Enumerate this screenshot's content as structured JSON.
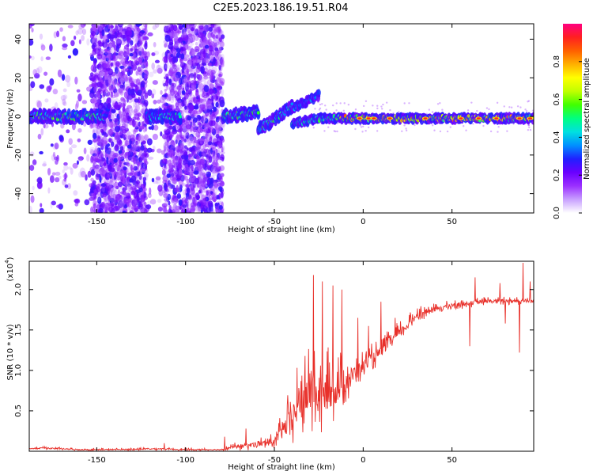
{
  "title": "C2E5.2023.186.19.51.R04",
  "colorbar": {
    "label": "Normalized spectral amplitude",
    "ticks": [
      0.0,
      0.2,
      0.4,
      0.6,
      0.8
    ],
    "tick_labels": [
      "0.0",
      "0.2",
      "0.4",
      "0.6",
      "0.8"
    ],
    "colors": [
      "#ffffff",
      "#c8a0ff",
      "#9b30ff",
      "#6a00ff",
      "#2020ff",
      "#0090ff",
      "#00e0e0",
      "#00ff80",
      "#40ff00",
      "#c0ff00",
      "#ffff00",
      "#ffb000",
      "#ff6000",
      "#ff2020",
      "#ff0080"
    ]
  },
  "chart_data": [
    {
      "type": "heatmap",
      "description_id": "spectrogram",
      "xlabel": "Height of straight line (km)",
      "ylabel": "Frequency (Hz)",
      "xlim": [
        -188,
        96
      ],
      "ylim": [
        -50,
        48
      ],
      "xticks": [
        -150,
        -100,
        -50,
        0,
        50
      ],
      "xtick_labels": [
        "-150",
        "-100",
        "-50",
        "0",
        "50"
      ],
      "yticks": [
        -40,
        -20,
        0,
        20,
        40
      ],
      "ytick_labels": [
        "-40",
        "-20",
        "0",
        "20",
        "40"
      ],
      "segments": [
        {
          "x0": -188,
          "x1": -146,
          "y0": 0,
          "y1": 0,
          "width": 4,
          "strength": 0.55
        },
        {
          "x0": -146,
          "x1": -143,
          "y0": -2,
          "y1": 6,
          "width": 2,
          "strength": 0.35
        },
        {
          "x0": -122,
          "x1": -103,
          "y0": 0,
          "y1": 0,
          "width": 4,
          "strength": 0.45
        },
        {
          "x0": -79,
          "x1": -59,
          "y0": 0,
          "y1": 2,
          "width": 4,
          "strength": 0.55
        },
        {
          "x0": -59,
          "x1": -40,
          "y0": -7,
          "y1": 5,
          "width": 4,
          "strength": 0.5
        },
        {
          "x0": -40,
          "x1": -25,
          "y0": 4,
          "y1": 11,
          "width": 3,
          "strength": 0.35
        },
        {
          "x0": -40,
          "x1": -25,
          "y0": -4,
          "y1": -1,
          "width": 3,
          "strength": 0.45
        },
        {
          "x0": -25,
          "x1": -13,
          "y0": -1,
          "y1": -1,
          "width": 3,
          "strength": 0.55
        },
        {
          "x0": -13,
          "x1": 96,
          "y0": -1,
          "y1": -1,
          "width": 3,
          "strength": 0.75
        }
      ],
      "hotspots": [
        -2,
        3,
        6,
        15,
        35,
        55,
        65,
        75,
        88,
        94
      ],
      "scatter_regions": [
        {
          "x0": -153,
          "x1": -122,
          "density": 1.0
        },
        {
          "x0": -112,
          "x1": -79,
          "density": 1.0
        },
        {
          "x0": -188,
          "x1": -153,
          "density": 0.08
        },
        {
          "x0": -122,
          "x1": -112,
          "density": 0.12
        }
      ]
    },
    {
      "type": "line",
      "description_id": "snr",
      "xlabel": "Height of straight line (km)",
      "ylabel": "SNR (10 * v/v)",
      "scale_label": "(x10",
      "scale_exponent": "4",
      "scale_suffix": ")",
      "xlim": [
        -188,
        96
      ],
      "ylim": [
        0,
        2.35
      ],
      "xticks": [
        -150,
        -100,
        -50,
        0,
        50
      ],
      "xtick_labels": [
        "-150",
        "-100",
        "-50",
        "0",
        "50"
      ],
      "yticks": [
        0.5,
        1.0,
        1.5,
        2.0
      ],
      "ytick_labels": [
        "0.5",
        "1.0",
        "1.5",
        "2.0"
      ],
      "series": [
        {
          "color": "#e8302a",
          "baseline": [
            [
              -188,
              0.03
            ],
            [
              -180,
              0.04
            ],
            [
              -160,
              0.02
            ],
            [
              -140,
              0.02
            ],
            [
              -115,
              0.03
            ],
            [
              -100,
              0.02
            ],
            [
              -80,
              0.02
            ],
            [
              -70,
              0.06
            ],
            [
              -60,
              0.08
            ],
            [
              -50,
              0.12
            ],
            [
              -45,
              0.25
            ],
            [
              -40,
              0.4
            ],
            [
              -35,
              0.6
            ],
            [
              -30,
              0.7
            ],
            [
              -25,
              0.65
            ],
            [
              -20,
              0.7
            ],
            [
              -15,
              0.75
            ],
            [
              -10,
              0.85
            ],
            [
              -5,
              0.95
            ],
            [
              0,
              1.05
            ],
            [
              5,
              1.15
            ],
            [
              10,
              1.22
            ],
            [
              15,
              1.35
            ],
            [
              20,
              1.45
            ],
            [
              25,
              1.55
            ],
            [
              30,
              1.68
            ],
            [
              35,
              1.72
            ],
            [
              40,
              1.75
            ],
            [
              45,
              1.78
            ],
            [
              50,
              1.8
            ],
            [
              60,
              1.83
            ],
            [
              70,
              1.85
            ],
            [
              80,
              1.86
            ],
            [
              90,
              1.86
            ],
            [
              96,
              1.85
            ]
          ],
          "noise": [
            [
              -188,
              0.015
            ],
            [
              -80,
              0.015
            ],
            [
              -70,
              0.05
            ],
            [
              -50,
              0.08
            ],
            [
              -40,
              0.35
            ],
            [
              -30,
              0.55
            ],
            [
              -20,
              0.45
            ],
            [
              -10,
              0.3
            ],
            [
              0,
              0.15
            ],
            [
              20,
              0.12
            ],
            [
              40,
              0.06
            ],
            [
              60,
              0.05
            ],
            [
              96,
              0.05
            ]
          ],
          "spikes": [
            [
              -112,
              0.1
            ],
            [
              -78,
              0.18
            ],
            [
              -66,
              0.28
            ],
            [
              -28,
              2.18
            ],
            [
              -23,
              2.1
            ],
            [
              -17,
              2.05
            ],
            [
              -12,
              2.0
            ],
            [
              -3,
              1.65
            ],
            [
              3,
              1.55
            ],
            [
              10,
              1.85
            ],
            [
              18,
              1.65
            ],
            [
              60,
              1.3
            ],
            [
              63,
              2.15
            ],
            [
              77,
              2.08
            ],
            [
              80,
              1.58
            ],
            [
              88,
              1.22
            ],
            [
              90,
              2.33
            ],
            [
              94,
              2.1
            ]
          ]
        }
      ]
    }
  ]
}
